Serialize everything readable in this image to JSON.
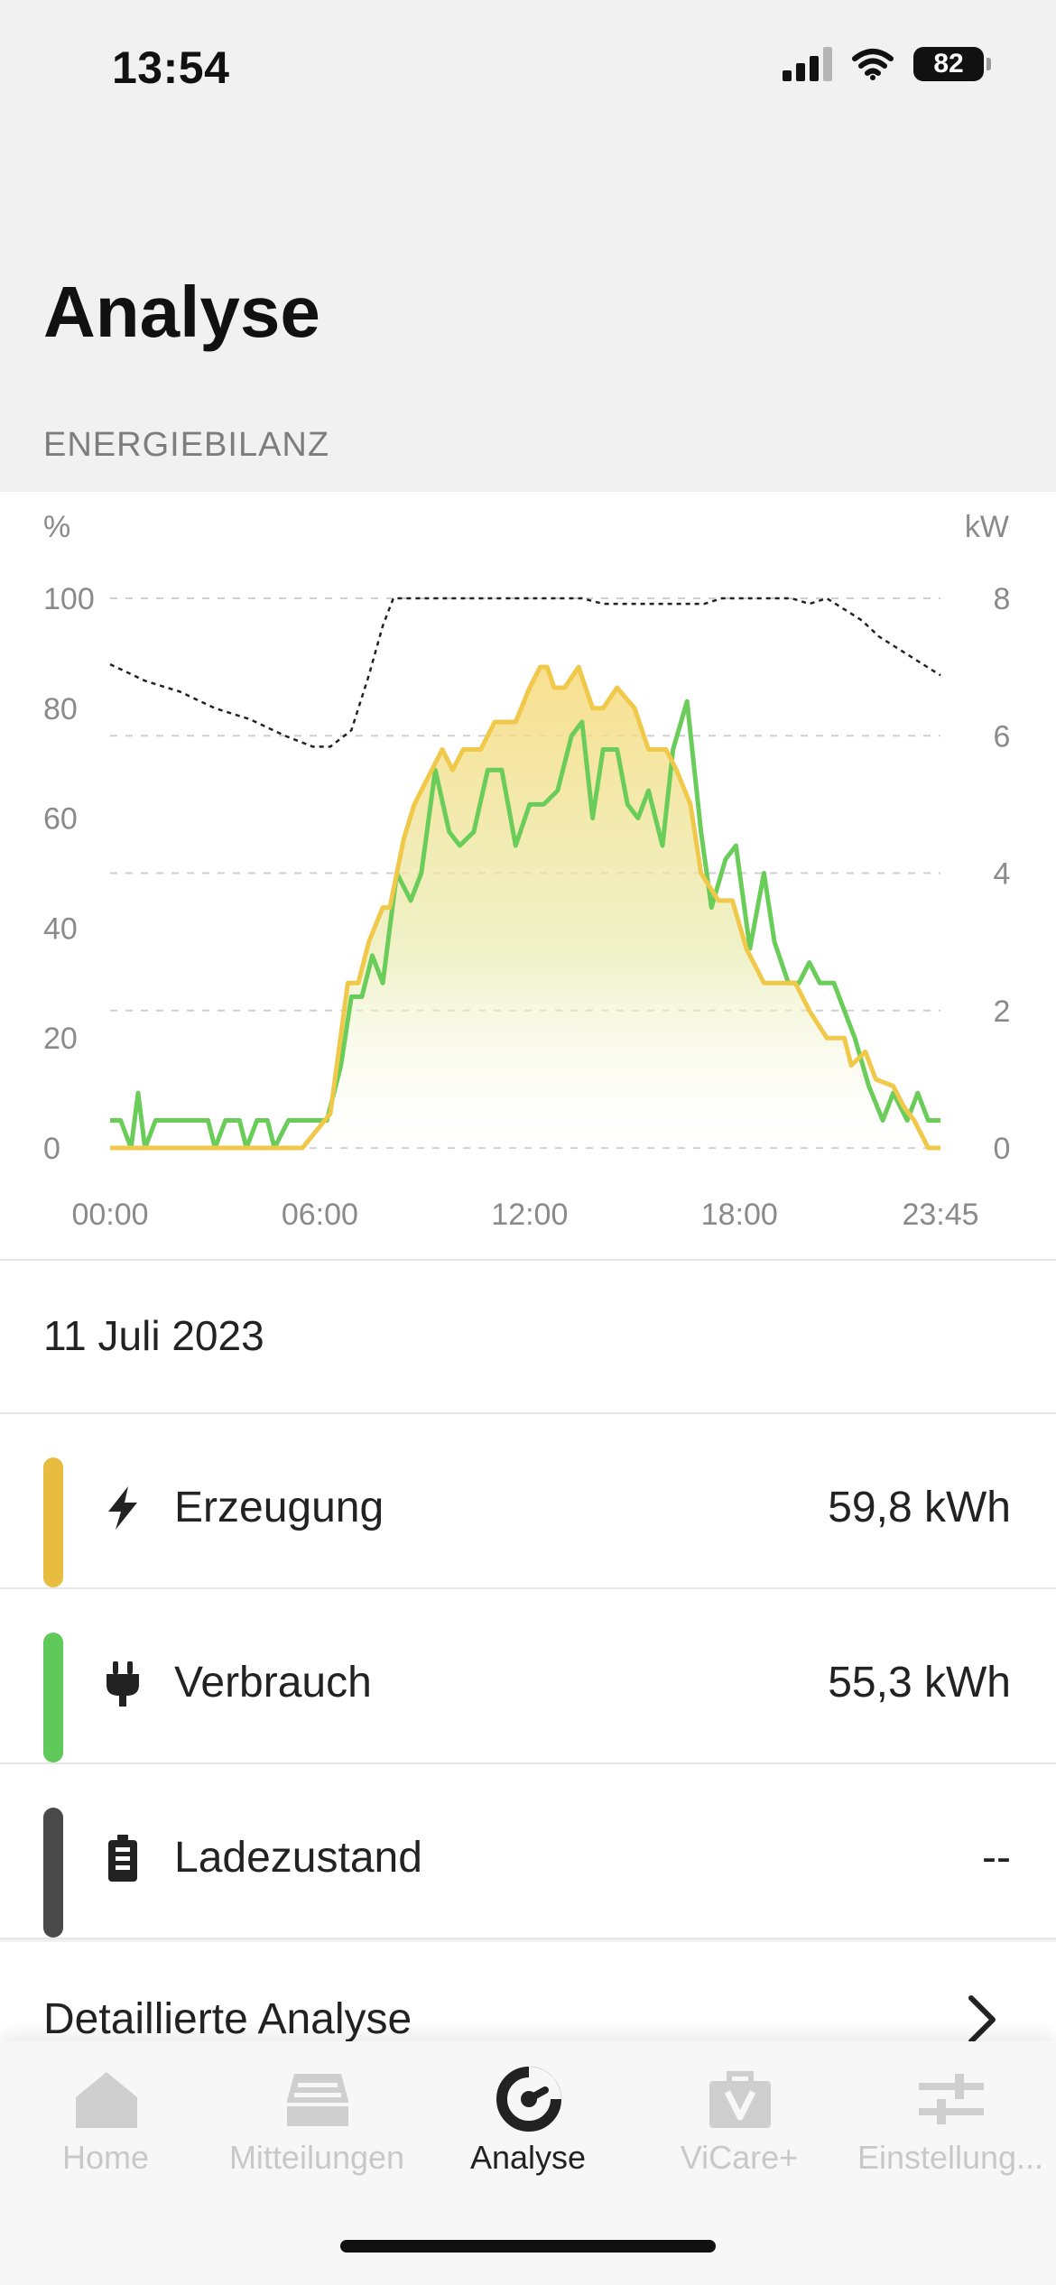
{
  "status_bar": {
    "time": "13:54",
    "battery": "82"
  },
  "page": {
    "title": "Analyse",
    "section": "ENERGIEBILANZ"
  },
  "chart_data": {
    "type": "line",
    "left_axis": {
      "unit": "%",
      "ticks": [
        "100",
        "80",
        "60",
        "40",
        "20",
        "0"
      ],
      "ylim": [
        0,
        100
      ]
    },
    "right_axis": {
      "unit": "kW",
      "ticks": [
        "8",
        "6",
        "4",
        "2",
        "0"
      ],
      "ylim": [
        0,
        8
      ]
    },
    "x_ticks": [
      "00:00",
      "06:00",
      "12:00",
      "18:00",
      "23:45"
    ],
    "x_range_hours": [
      0,
      23.75
    ],
    "grid": "dashed horizontal",
    "series": [
      {
        "name": "Erzeugung",
        "axis": "kW",
        "color": "#f0c84a",
        "fill": "gradient",
        "points": [
          [
            0,
            0
          ],
          [
            5.5,
            0
          ],
          [
            6.3,
            0.5
          ],
          [
            6.8,
            2.4
          ],
          [
            7.1,
            2.4
          ],
          [
            7.4,
            3.0
          ],
          [
            7.8,
            3.5
          ],
          [
            8.0,
            3.5
          ],
          [
            8.4,
            4.5
          ],
          [
            8.7,
            5.0
          ],
          [
            9.2,
            5.5
          ],
          [
            9.5,
            5.8
          ],
          [
            9.8,
            5.5
          ],
          [
            10.1,
            5.8
          ],
          [
            10.6,
            5.8
          ],
          [
            11.0,
            6.2
          ],
          [
            11.6,
            6.2
          ],
          [
            12.0,
            6.7
          ],
          [
            12.3,
            7.0
          ],
          [
            12.5,
            7.0
          ],
          [
            12.7,
            6.7
          ],
          [
            13.0,
            6.7
          ],
          [
            13.4,
            7.0
          ],
          [
            13.8,
            6.4
          ],
          [
            14.1,
            6.4
          ],
          [
            14.5,
            6.7
          ],
          [
            15.0,
            6.4
          ],
          [
            15.4,
            5.8
          ],
          [
            15.9,
            5.8
          ],
          [
            16.2,
            5.5
          ],
          [
            16.6,
            5.0
          ],
          [
            16.9,
            4.0
          ],
          [
            17.4,
            3.6
          ],
          [
            17.8,
            3.6
          ],
          [
            18.2,
            2.9
          ],
          [
            18.7,
            2.4
          ],
          [
            19.1,
            2.4
          ],
          [
            19.6,
            2.4
          ],
          [
            20.0,
            2.0
          ],
          [
            20.5,
            1.6
          ],
          [
            21.0,
            1.6
          ],
          [
            21.2,
            1.2
          ],
          [
            21.6,
            1.4
          ],
          [
            21.9,
            1.0
          ],
          [
            22.4,
            0.9
          ],
          [
            22.7,
            0.6
          ],
          [
            23.0,
            0.4
          ],
          [
            23.4,
            0
          ],
          [
            23.75,
            0
          ]
        ]
      },
      {
        "name": "Verbrauch",
        "axis": "kW",
        "color": "#6acd5a",
        "points": [
          [
            0,
            0.4
          ],
          [
            0.3,
            0.4
          ],
          [
            0.6,
            0
          ],
          [
            0.8,
            0.8
          ],
          [
            1.0,
            0
          ],
          [
            1.3,
            0.4
          ],
          [
            2.8,
            0.4
          ],
          [
            3.0,
            0
          ],
          [
            3.3,
            0.4
          ],
          [
            3.7,
            0.4
          ],
          [
            3.9,
            0
          ],
          [
            4.2,
            0.4
          ],
          [
            4.5,
            0.4
          ],
          [
            4.7,
            0
          ],
          [
            5.1,
            0.4
          ],
          [
            5.6,
            0.4
          ],
          [
            5.9,
            0.4
          ],
          [
            6.2,
            0.4
          ],
          [
            6.6,
            1.2
          ],
          [
            6.9,
            2.2
          ],
          [
            7.2,
            2.2
          ],
          [
            7.5,
            2.8
          ],
          [
            7.8,
            2.4
          ],
          [
            8.2,
            4.0
          ],
          [
            8.6,
            3.6
          ],
          [
            8.9,
            4.0
          ],
          [
            9.3,
            5.5
          ],
          [
            9.7,
            4.6
          ],
          [
            10.0,
            4.4
          ],
          [
            10.4,
            4.6
          ],
          [
            10.8,
            5.5
          ],
          [
            11.2,
            5.5
          ],
          [
            11.6,
            4.4
          ],
          [
            12.0,
            5.0
          ],
          [
            12.4,
            5.0
          ],
          [
            12.8,
            5.2
          ],
          [
            13.2,
            6.0
          ],
          [
            13.5,
            6.2
          ],
          [
            13.8,
            4.8
          ],
          [
            14.1,
            5.8
          ],
          [
            14.5,
            5.8
          ],
          [
            14.8,
            5.0
          ],
          [
            15.1,
            4.8
          ],
          [
            15.4,
            5.2
          ],
          [
            15.8,
            4.4
          ],
          [
            16.1,
            5.8
          ],
          [
            16.5,
            6.5
          ],
          [
            16.9,
            4.6
          ],
          [
            17.2,
            3.5
          ],
          [
            17.6,
            4.2
          ],
          [
            17.9,
            4.4
          ],
          [
            18.3,
            2.9
          ],
          [
            18.7,
            4.0
          ],
          [
            19.0,
            3.0
          ],
          [
            19.4,
            2.4
          ],
          [
            19.7,
            2.4
          ],
          [
            20.0,
            2.7
          ],
          [
            20.3,
            2.4
          ],
          [
            20.7,
            2.4
          ],
          [
            21.0,
            2.0
          ],
          [
            21.3,
            1.6
          ],
          [
            21.7,
            0.9
          ],
          [
            22.1,
            0.4
          ],
          [
            22.4,
            0.8
          ],
          [
            22.8,
            0.4
          ],
          [
            23.1,
            0.8
          ],
          [
            23.4,
            0.4
          ],
          [
            23.75,
            0.4
          ]
        ]
      },
      {
        "name": "Ladezustand",
        "axis": "%",
        "color": "#222222",
        "style": "dotted",
        "points": [
          [
            0,
            88
          ],
          [
            1.0,
            85
          ],
          [
            2.0,
            83
          ],
          [
            3.0,
            80
          ],
          [
            4.0,
            78
          ],
          [
            5.0,
            75
          ],
          [
            5.8,
            73
          ],
          [
            6.3,
            73
          ],
          [
            6.9,
            76
          ],
          [
            7.4,
            86
          ],
          [
            7.8,
            95
          ],
          [
            8.1,
            100
          ],
          [
            8.5,
            100
          ],
          [
            9.5,
            100
          ],
          [
            10.0,
            100
          ],
          [
            13.0,
            100
          ],
          [
            13.5,
            100
          ],
          [
            14.1,
            99
          ],
          [
            15.0,
            99
          ],
          [
            16.0,
            99
          ],
          [
            17.0,
            99
          ],
          [
            17.5,
            100
          ],
          [
            18.5,
            100
          ],
          [
            19.5,
            100
          ],
          [
            20.0,
            99
          ],
          [
            20.5,
            100
          ],
          [
            21.0,
            98
          ],
          [
            21.5,
            96
          ],
          [
            22.0,
            93
          ],
          [
            22.5,
            91
          ],
          [
            23.0,
            89
          ],
          [
            23.75,
            86
          ]
        ]
      }
    ]
  },
  "date": "11 Juli 2023",
  "legend": [
    {
      "label": "Erzeugung",
      "value": "59,8 kWh",
      "color": "#e8bc3e",
      "icon": "lightning-icon"
    },
    {
      "label": "Verbrauch",
      "value": "55,3 kWh",
      "color": "#5fc95a",
      "icon": "plug-icon"
    },
    {
      "label": "Ladezustand",
      "value": "--",
      "color": "#4a4a4a",
      "icon": "battery-icon"
    }
  ],
  "detail": {
    "label": "Detaillierte Analyse"
  },
  "tabs": [
    {
      "label": "Home",
      "icon": "home-icon",
      "active": false
    },
    {
      "label": "Mitteilungen",
      "icon": "inbox-icon",
      "active": false
    },
    {
      "label": "Analyse",
      "icon": "analyse-icon",
      "active": true
    },
    {
      "label": "ViCare+",
      "icon": "bag-icon",
      "active": false
    },
    {
      "label": "Einstellung...",
      "icon": "sliders-icon",
      "active": false
    }
  ]
}
